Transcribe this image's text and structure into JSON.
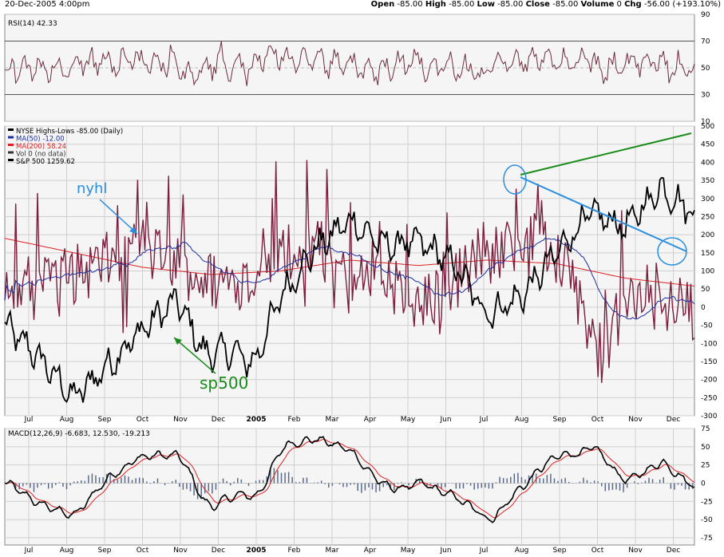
{
  "header": {
    "date": "20-Dec-2005 4:00pm",
    "quote_parts": [
      {
        "label": "Open",
        "value": "-85.00"
      },
      {
        "label": "High",
        "value": "-85.00"
      },
      {
        "label": "Low",
        "value": "-85.00"
      },
      {
        "label": "Close",
        "value": "-85.00"
      },
      {
        "label": "Volume",
        "value": "0"
      },
      {
        "label": "Chg",
        "value": "-56.00 (+193.10%)"
      }
    ]
  },
  "colors": {
    "rsi": "#6b2b3a",
    "nyhl": "#7a1f3d",
    "price": "#000000",
    "ma50": "#1a2ea0",
    "ma200": "#e02020",
    "macd": "#000000",
    "signal": "#e02020",
    "hist": "#5a6a8a",
    "annot_blue": "#2a8ee0",
    "annot_green": "#1a8a1a",
    "grid": "#cfcfcf",
    "panel_bg": "#f5f5f5"
  },
  "months": [
    "Jul",
    "Aug",
    "Sep",
    "Oct",
    "Nov",
    "Dec",
    "2005",
    "Feb",
    "Mar",
    "Apr",
    "May",
    "Jun",
    "Jul",
    "Aug",
    "Sep",
    "Oct",
    "Nov",
    "Dec"
  ],
  "annotations": {
    "nyhl_label": "nyhl",
    "sp500_label": "sp500"
  },
  "chart_data": [
    {
      "type": "line",
      "title": "RSI(14) 42.33",
      "ylim": [
        10,
        90
      ],
      "yticks": [
        90,
        70,
        50,
        30,
        10
      ],
      "series": [
        {
          "name": "RSI(14)",
          "last": 42.33
        }
      ]
    },
    {
      "type": "line",
      "title": "NYSE Highs-Lows -85.00 (Daily)",
      "ylim": [
        -300,
        500
      ],
      "yticks": [
        500,
        450,
        400,
        350,
        300,
        250,
        200,
        150,
        100,
        50,
        0,
        -50,
        -100,
        -150,
        -200,
        -250,
        -300
      ],
      "legend": [
        {
          "key": "nyhl",
          "text": "NYSE Highs-Lows -85.00 (Daily)"
        },
        {
          "key": "ma50",
          "text": "MA(50) -12.00"
        },
        {
          "key": "ma200",
          "text": "MA(200) 58.24"
        },
        {
          "key": "vol",
          "text": "Vol 0 (no data)"
        },
        {
          "key": "price",
          "text": "S&P 500 1259.62"
        }
      ],
      "series": [
        {
          "name": "NYSE Highs-Lows",
          "last": -85.0
        },
        {
          "name": "MA(50)",
          "last": -12.0
        },
        {
          "name": "MA(200)",
          "last": 58.24
        },
        {
          "name": "S&P 500 (overlay)",
          "last": 1259.62
        }
      ]
    },
    {
      "type": "line",
      "title": "MACD(12,26,9) -6.683, 12.530, -19.213",
      "ylim": [
        -85,
        75
      ],
      "yticks": [
        75,
        50,
        25,
        0,
        -25,
        -50,
        -75
      ],
      "series": [
        {
          "name": "MACD",
          "last": -6.683
        },
        {
          "name": "Signal",
          "last": 12.53
        },
        {
          "name": "Histogram",
          "last": -19.213
        }
      ]
    }
  ]
}
